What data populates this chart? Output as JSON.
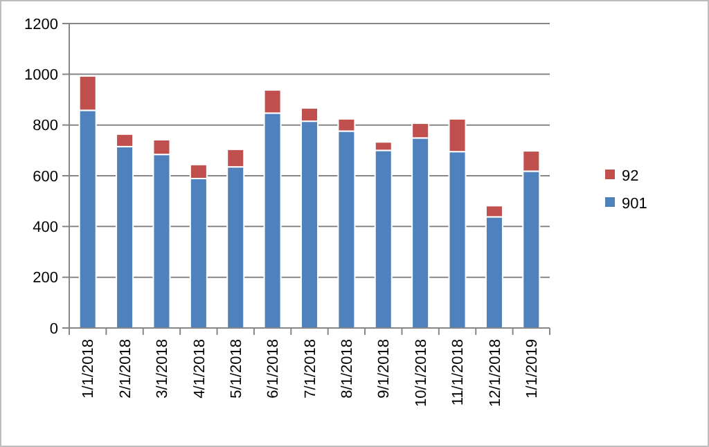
{
  "chart_data": {
    "type": "bar",
    "stacked": true,
    "categories": [
      "1/1/2018",
      "2/1/2018",
      "3/1/2018",
      "4/1/2018",
      "5/1/2018",
      "6/1/2018",
      "7/1/2018",
      "8/1/2018",
      "9/1/2018",
      "10/1/2018",
      "11/1/2018",
      "12/1/2018",
      "1/1/2019"
    ],
    "series": [
      {
        "name": "901",
        "color": "#4f81bd",
        "values": [
          858,
          715,
          684,
          589,
          635,
          847,
          815,
          776,
          700,
          749,
          695,
          438,
          618
        ]
      },
      {
        "name": "92",
        "color": "#c0504d",
        "values": [
          135,
          49,
          58,
          55,
          69,
          91,
          52,
          48,
          33,
          58,
          129,
          44,
          80
        ]
      }
    ],
    "ylim": [
      0,
      1200
    ],
    "yticks": [
      0,
      200,
      400,
      600,
      800,
      1000,
      1200
    ],
    "grid": "y",
    "legend": "right"
  }
}
